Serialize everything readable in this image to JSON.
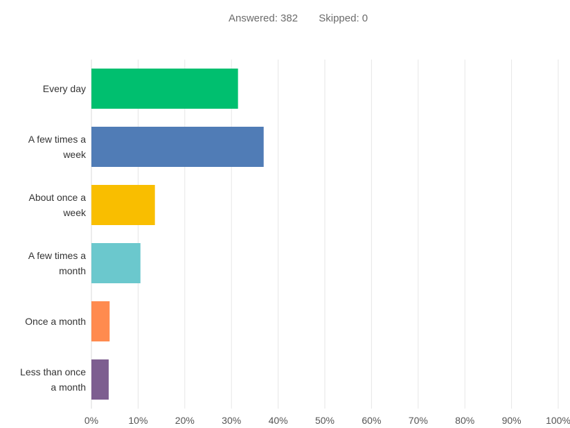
{
  "summary": {
    "answered_label": "Answered: 382",
    "skipped_label": "Skipped: 0"
  },
  "chart_data": {
    "type": "bar",
    "orientation": "horizontal",
    "categories": [
      [
        "Every day"
      ],
      [
        "A few times a",
        "week"
      ],
      [
        "About once a",
        "week"
      ],
      [
        "A few times a",
        "month"
      ],
      [
        "Once a month"
      ],
      [
        "Less than once",
        "a month"
      ]
    ],
    "values": [
      31.4,
      36.9,
      13.6,
      10.5,
      3.9,
      3.7
    ],
    "colors": [
      "#00bf6f",
      "#507cb6",
      "#f9be00",
      "#6bc8cd",
      "#ff8b4f",
      "#7d5e90"
    ],
    "xlim": [
      0,
      100
    ],
    "x_ticks": [
      "0%",
      "10%",
      "20%",
      "30%",
      "40%",
      "50%",
      "60%",
      "70%",
      "80%",
      "90%",
      "100%"
    ],
    "grid": true,
    "title": "",
    "xlabel": "",
    "ylabel": ""
  }
}
